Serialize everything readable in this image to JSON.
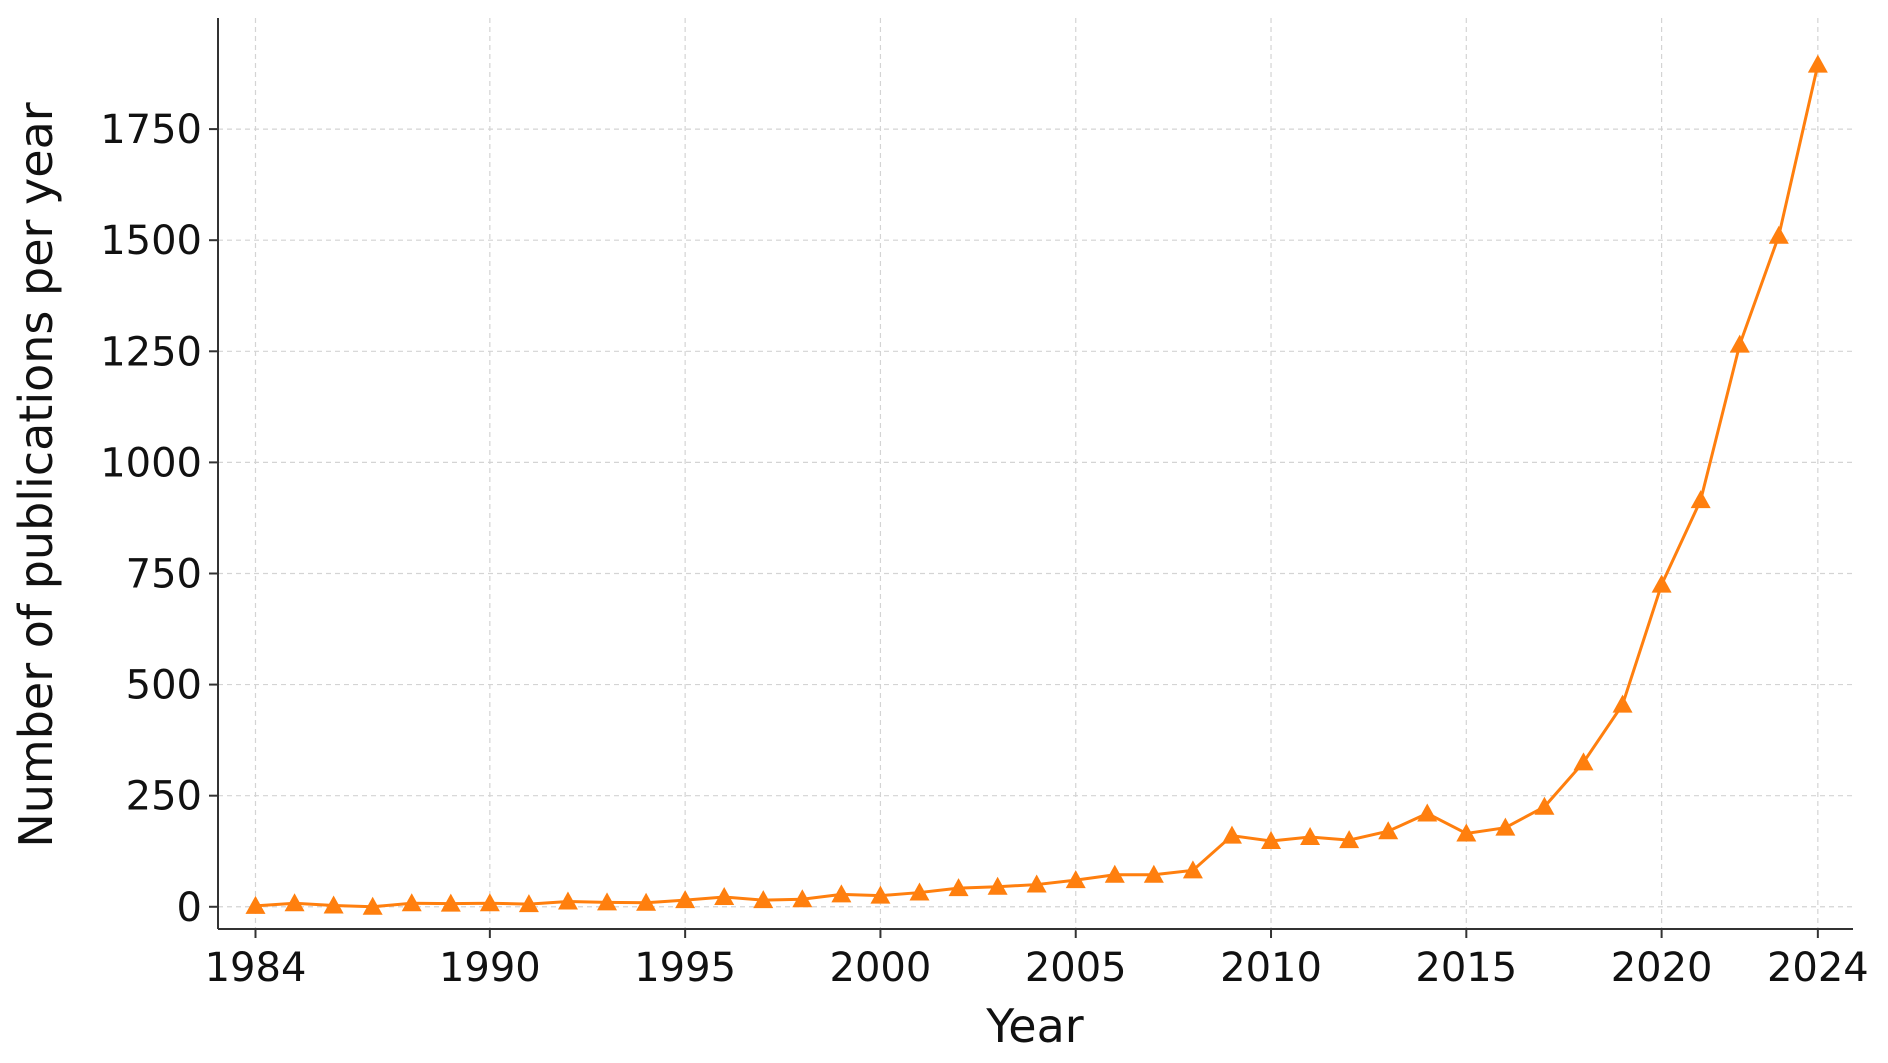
{
  "chart_data": {
    "type": "line",
    "xlabel": "Year",
    "ylabel": "Number of publications per year",
    "x": [
      1984,
      1985,
      1986,
      1987,
      1988,
      1989,
      1990,
      1991,
      1992,
      1993,
      1994,
      1995,
      1996,
      1997,
      1998,
      1999,
      2000,
      2001,
      2002,
      2003,
      2004,
      2005,
      2006,
      2007,
      2008,
      2009,
      2010,
      2011,
      2012,
      2013,
      2014,
      2015,
      2016,
      2017,
      2018,
      2019,
      2020,
      2021,
      2022,
      2023,
      2024
    ],
    "series": [
      {
        "color": "#ff7f0e",
        "marker": "triangle",
        "values": [
          2,
          8,
          3,
          0,
          8,
          7,
          8,
          6,
          12,
          10,
          9,
          15,
          22,
          15,
          17,
          28,
          25,
          32,
          42,
          45,
          50,
          60,
          72,
          72,
          82,
          160,
          148,
          157,
          150,
          170,
          210,
          165,
          178,
          225,
          325,
          455,
          725,
          915,
          1265,
          1510,
          1895
        ]
      }
    ],
    "xlim": [
      1983.04,
      2024.9
    ],
    "xticks": [
      1984,
      1990,
      1995,
      2000,
      2005,
      2010,
      2015,
      2020,
      2024
    ],
    "ylim": [
      -50,
      2000
    ],
    "yticks": [
      0,
      250,
      500,
      750,
      1000,
      1250,
      1500,
      1750
    ],
    "grid": true
  }
}
